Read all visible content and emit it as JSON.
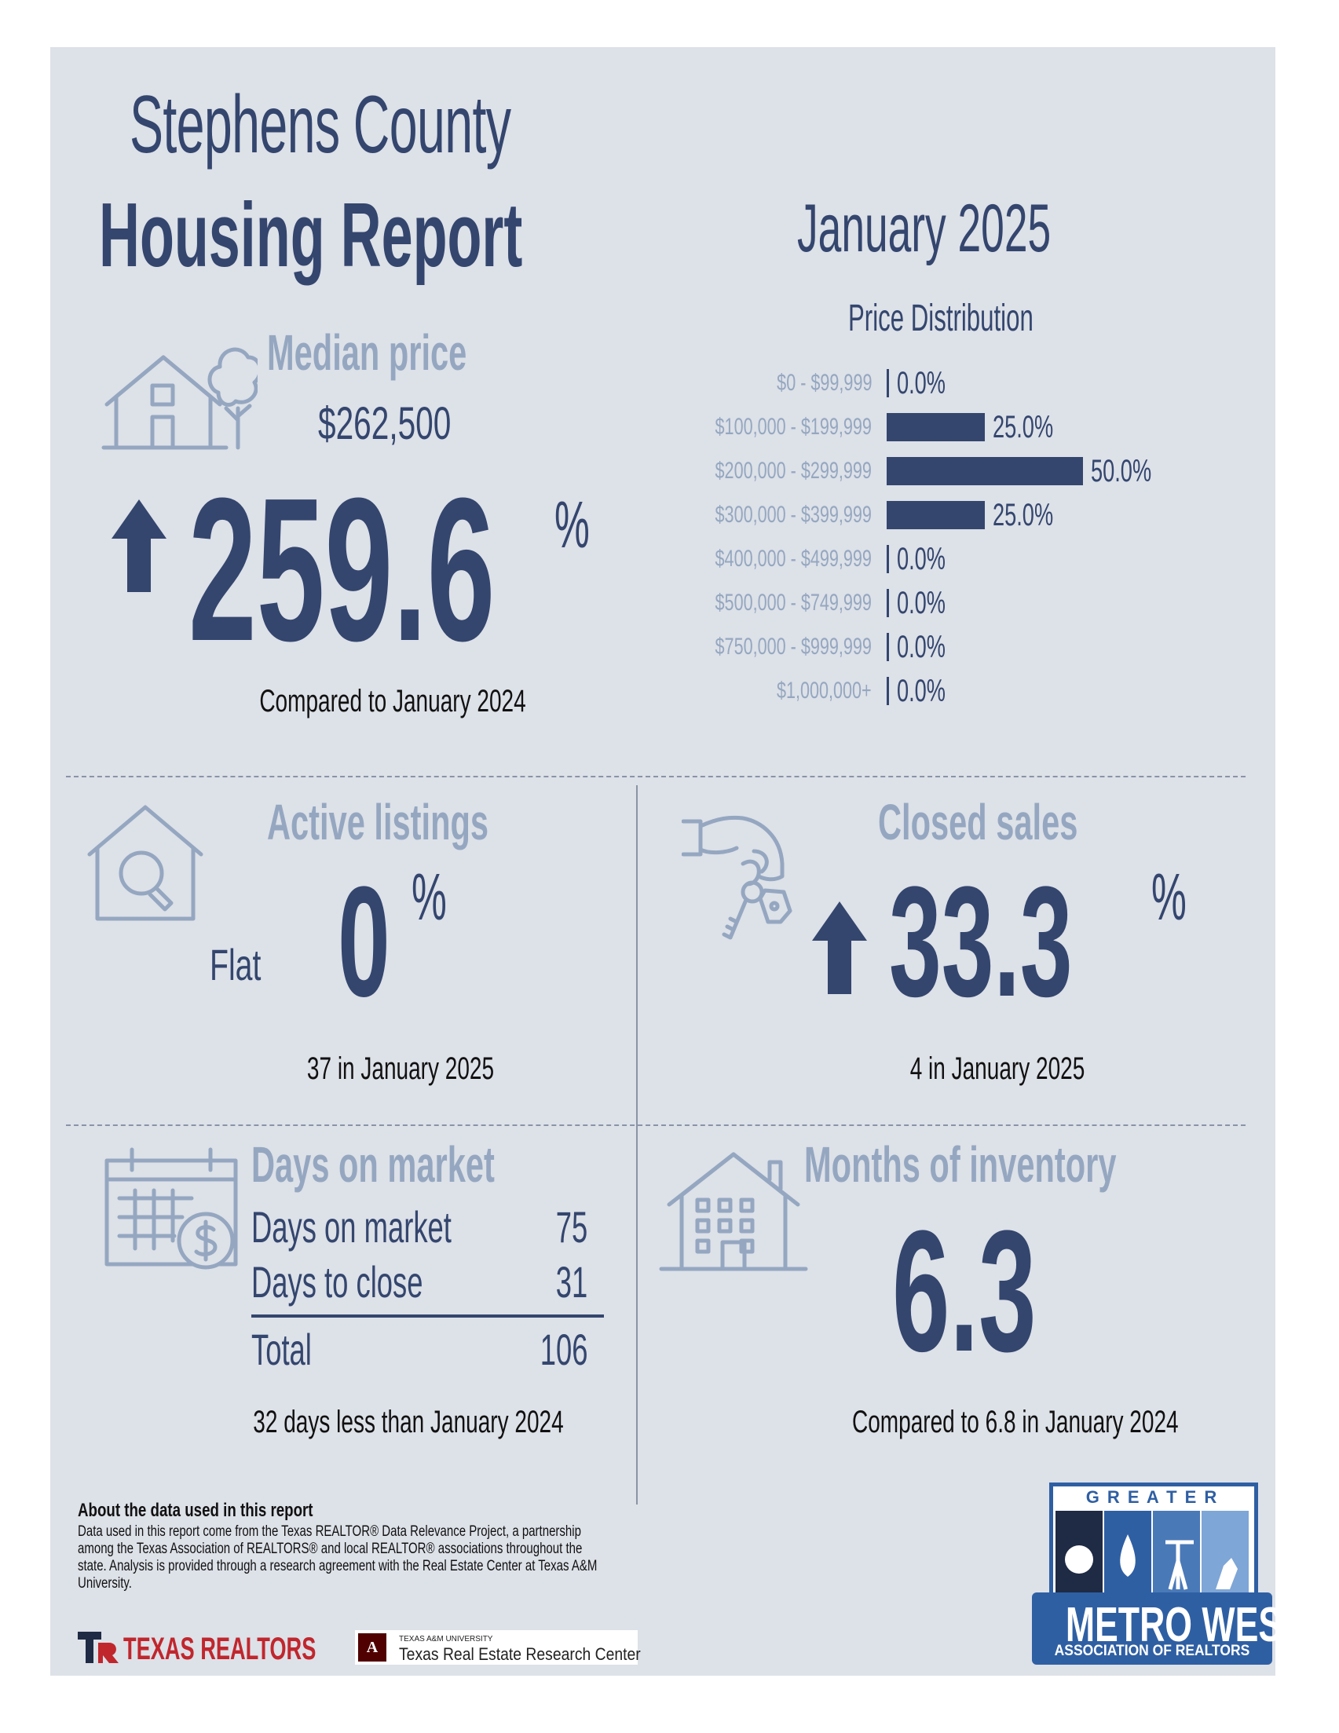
{
  "header": {
    "title_line1": "Stephens County",
    "title_line2": "Housing Report",
    "month": "January 2025"
  },
  "median_price": {
    "title": "Median price",
    "value": "$262,500",
    "change": "259.6",
    "unit": "%",
    "direction": "up",
    "caption": "Compared to January 2024",
    "icon": "house-with-tree-icon"
  },
  "price_distribution": {
    "title": "Price Distribution"
  },
  "chart_data": {
    "type": "bar",
    "title": "Price Distribution",
    "orientation": "horizontal",
    "categories": [
      "$0 - $99,999",
      "$100,000 - $199,999",
      "$200,000 - $299,999",
      "$300,000 - $399,999",
      "$400,000 - $499,999",
      "$500,000 - $749,999",
      "$750,000 - $999,999",
      "$1,000,000+"
    ],
    "values": [
      0.0,
      25.0,
      50.0,
      25.0,
      0.0,
      0.0,
      0.0,
      0.0
    ],
    "labels": [
      "0.0%",
      "25.0%",
      "50.0%",
      "25.0%",
      "0.0%",
      "0.0%",
      "0.0%",
      "0.0%"
    ],
    "xlim": [
      0,
      50
    ],
    "bar_color": "#34466e"
  },
  "active_listings": {
    "title": "Active listings",
    "trend": "Flat",
    "change": "0",
    "unit": "%",
    "caption": "37 in January 2025",
    "icon": "house-magnifier-icon"
  },
  "closed_sales": {
    "title": "Closed sales",
    "change": "33.3",
    "unit": "%",
    "direction": "up",
    "caption": "4 in January 2025",
    "icon": "hand-with-keys-icon"
  },
  "days_on_market": {
    "title": "Days on market",
    "rows": [
      {
        "label": "Days on market",
        "value": "75"
      },
      {
        "label": "Days to close",
        "value": "31"
      }
    ],
    "total_label": "Total",
    "total_value": "106",
    "caption": "32 days less than January 2024",
    "icon": "calendar-dollar-icon"
  },
  "months_inventory": {
    "title": "Months of inventory",
    "value": "6.3",
    "caption": "Compared to 6.8 in January 2024",
    "icon": "apartment-building-icon"
  },
  "footer": {
    "about_title": "About the data used in this report",
    "about_text": "Data used in this report come from the Texas REALTOR® Data Relevance Project, a partnership among the Texas Association of REALTORS® and local REALTOR® associations throughout the state. Analysis is provided through a research agreement with the Real Estate Center at Texas A&M University.",
    "logo_texas_realtors": "TEXAS REALTORS",
    "logo_tamu_small": "TEXAS A&M UNIVERSITY",
    "logo_tamu": "Texas Real Estate Research Center",
    "logo_metro_top": "G R E A T E R",
    "logo_metro_main": "METRO WEST",
    "logo_metro_sub": "ASSOCIATION OF REALTORS"
  },
  "colors": {
    "navy": "#34466e",
    "light": "#95a7c0",
    "panel": "#dde1e8"
  }
}
